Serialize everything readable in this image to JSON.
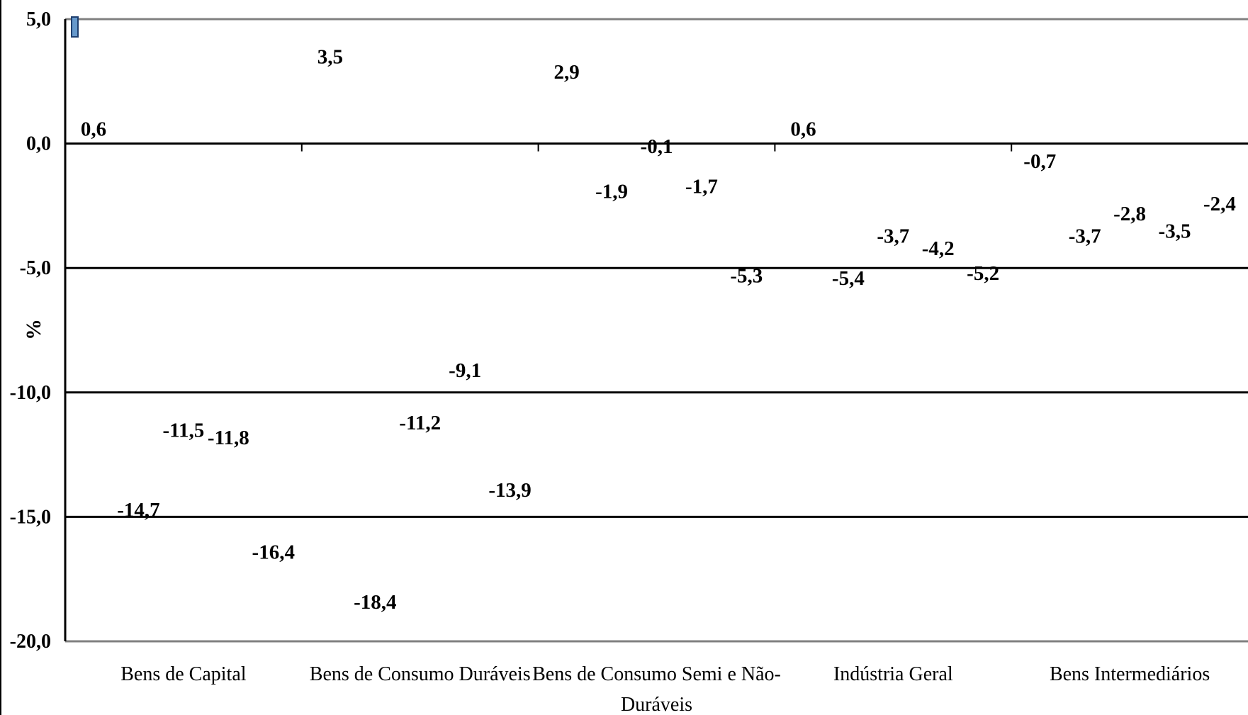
{
  "chart_data": {
    "type": "bar",
    "title": "",
    "xlabel": "",
    "ylabel": "%",
    "ylim": [
      -20,
      5
    ],
    "yticks": [
      "5,0",
      "0,0",
      "-5,0",
      "-10,0",
      "-15,0",
      "-20,0"
    ],
    "ytick_values": [
      5,
      0,
      -5,
      -10,
      -15,
      -20
    ],
    "grid": true,
    "legend": "none",
    "bars_rendered": "not visible (labels only)",
    "categories": [
      {
        "label_lines": [
          "Bens de Capital"
        ]
      },
      {
        "label_lines": [
          "Bens de Consumo Duráveis"
        ]
      },
      {
        "label_lines": [
          "Bens de Consumo Semi e Não-",
          "Duráveis"
        ]
      },
      {
        "label_lines": [
          "Indústria Geral"
        ]
      },
      {
        "label_lines": [
          "Bens Intermediários"
        ]
      }
    ],
    "data_labels": [
      {
        "category": 0,
        "slot": 0,
        "value": 0.6,
        "text": "0,6"
      },
      {
        "category": 0,
        "slot": 1,
        "value": -14.7,
        "text": "-14,7"
      },
      {
        "category": 0,
        "slot": 2,
        "value": -11.5,
        "text": "-11,5"
      },
      {
        "category": 0,
        "slot": 3,
        "value": -11.8,
        "text": "-11,8"
      },
      {
        "category": 0,
        "slot": 4,
        "value": -16.4,
        "text": "-16,4"
      },
      {
        "category": 1,
        "slot": 0,
        "value": 3.5,
        "text": "3,5"
      },
      {
        "category": 1,
        "slot": 1,
        "value": -18.4,
        "text": "-18,4"
      },
      {
        "category": 1,
        "slot": 2,
        "value": -11.2,
        "text": "-11,2"
      },
      {
        "category": 1,
        "slot": 3,
        "value": -9.1,
        "text": "-9,1"
      },
      {
        "category": 1,
        "slot": 4,
        "value": -13.9,
        "text": "-13,9"
      },
      {
        "category": 2,
        "slot": 0,
        "value": 2.9,
        "text": "2,9"
      },
      {
        "category": 2,
        "slot": 1,
        "value": -1.9,
        "text": "-1,9"
      },
      {
        "category": 2,
        "slot": 2,
        "value": -0.1,
        "text": "-0,1"
      },
      {
        "category": 2,
        "slot": 3,
        "value": -1.7,
        "text": "-1,7"
      },
      {
        "category": 2,
        "slot": 4,
        "value": -5.3,
        "text": "-5,3"
      },
      {
        "category": 3,
        "slot": 0,
        "value": 0.6,
        "text": "0,6"
      },
      {
        "category": 3,
        "slot": 1,
        "value": -5.4,
        "text": "-5,4"
      },
      {
        "category": 3,
        "slot": 2,
        "value": -3.7,
        "text": "-3,7"
      },
      {
        "category": 3,
        "slot": 3,
        "value": -4.2,
        "text": "-4,2"
      },
      {
        "category": 3,
        "slot": 4,
        "value": -5.2,
        "text": "-5,2"
      },
      {
        "category": 4,
        "slot": 0,
        "value": -0.7,
        "text": "-0,7"
      },
      {
        "category": 4,
        "slot": 1,
        "value": -3.7,
        "text": "-3,7"
      },
      {
        "category": 4,
        "slot": 2,
        "value": -2.8,
        "text": "-2,8"
      },
      {
        "category": 4,
        "slot": 3,
        "value": -3.5,
        "text": "-3,5"
      },
      {
        "category": 4,
        "slot": 4,
        "value": -2.4,
        "text": "-2,4"
      }
    ],
    "colors": {
      "gridline": "#000000",
      "axis_bottom": "#808080",
      "marker_fill": "#6699cc",
      "marker_border": "#1f3f6f"
    }
  }
}
